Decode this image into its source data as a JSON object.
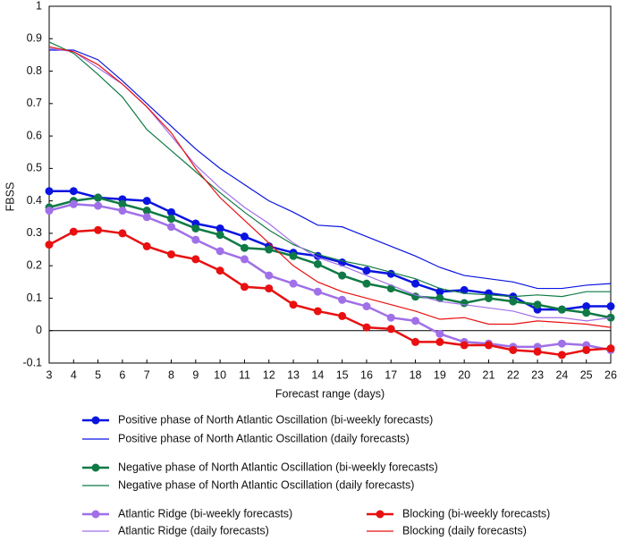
{
  "chart_data": {
    "type": "line",
    "xlabel": "Forecast range (days)",
    "ylabel": "FBSS",
    "x": [
      3,
      4,
      5,
      6,
      7,
      8,
      9,
      10,
      11,
      12,
      13,
      14,
      15,
      16,
      17,
      18,
      19,
      20,
      21,
      22,
      23,
      24,
      25,
      26
    ],
    "xlim": [
      3,
      26
    ],
    "xticks": [
      3,
      4,
      5,
      6,
      7,
      8,
      9,
      10,
      11,
      12,
      13,
      14,
      15,
      16,
      17,
      18,
      19,
      20,
      21,
      22,
      23,
      24,
      25,
      26
    ],
    "ylim": [
      -0.1,
      1
    ],
    "yticks": [
      -0.1,
      0,
      0.1,
      0.2,
      0.3,
      0.4,
      0.5,
      0.6,
      0.7,
      0.8,
      0.9,
      1
    ],
    "zero_line": true,
    "series": [
      {
        "name": "Positive phase of North Atlantic Oscillation (bi-weekly forecasts)",
        "color": "#0a14e0",
        "marker": true,
        "values": [
          0.43,
          0.43,
          0.41,
          0.405,
          0.4,
          0.365,
          0.33,
          0.315,
          0.29,
          0.26,
          0.24,
          0.23,
          0.21,
          0.185,
          0.175,
          0.145,
          0.12,
          0.125,
          0.115,
          0.105,
          0.065,
          0.065,
          0.075,
          0.075
        ]
      },
      {
        "name": "Positive phase of North Atlantic Oscillation (daily forecasts)",
        "color": "#0a14e0",
        "marker": false,
        "values": [
          0.865,
          0.865,
          0.835,
          0.77,
          0.7,
          0.63,
          0.56,
          0.5,
          0.45,
          0.4,
          0.365,
          0.325,
          0.32,
          0.29,
          0.26,
          0.23,
          0.195,
          0.17,
          0.16,
          0.15,
          0.13,
          0.13,
          0.14,
          0.145
        ]
      },
      {
        "name": "Negative phase of North Atlantic Oscillation (bi-weekly forecasts)",
        "color": "#0f7a45",
        "marker": true,
        "values": [
          0.38,
          0.4,
          0.41,
          0.39,
          0.37,
          0.345,
          0.315,
          0.295,
          0.255,
          0.25,
          0.23,
          0.205,
          0.17,
          0.145,
          0.13,
          0.105,
          0.1,
          0.085,
          0.1,
          0.09,
          0.08,
          0.065,
          0.055,
          0.04
        ]
      },
      {
        "name": "Negative phase of North Atlantic Oscillation (daily forecasts)",
        "color": "#0f7a45",
        "marker": false,
        "values": [
          0.89,
          0.855,
          0.79,
          0.72,
          0.62,
          0.555,
          0.49,
          0.425,
          0.365,
          0.31,
          0.265,
          0.235,
          0.215,
          0.2,
          0.18,
          0.16,
          0.13,
          0.115,
          0.11,
          0.105,
          0.11,
          0.105,
          0.12,
          0.12
        ]
      },
      {
        "name": "Atlantic Ridge (bi-weekly forecasts)",
        "color": "#a070e8",
        "marker": true,
        "values": [
          0.37,
          0.39,
          0.385,
          0.37,
          0.35,
          0.32,
          0.28,
          0.245,
          0.22,
          0.17,
          0.145,
          0.12,
          0.095,
          0.075,
          0.04,
          0.03,
          -0.01,
          -0.035,
          -0.04,
          -0.05,
          -0.05,
          -0.04,
          -0.045,
          -0.06
        ]
      },
      {
        "name": "Atlantic Ridge (daily forecasts)",
        "color": "#a070e8",
        "marker": false,
        "values": [
          0.87,
          0.86,
          0.81,
          0.76,
          0.69,
          0.6,
          0.51,
          0.44,
          0.38,
          0.33,
          0.27,
          0.225,
          0.2,
          0.17,
          0.14,
          0.11,
          0.09,
          0.08,
          0.07,
          0.06,
          0.04,
          0.04,
          0.03,
          0.04
        ]
      },
      {
        "name": "Blocking (bi-weekly forecasts)",
        "color": "#e81010",
        "marker": true,
        "values": [
          0.265,
          0.305,
          0.31,
          0.3,
          0.26,
          0.235,
          0.22,
          0.185,
          0.135,
          0.13,
          0.08,
          0.06,
          0.045,
          0.01,
          0.005,
          -0.035,
          -0.035,
          -0.045,
          -0.045,
          -0.06,
          -0.065,
          -0.075,
          -0.06,
          -0.055
        ]
      },
      {
        "name": "Blocking (daily forecasts)",
        "color": "#e81010",
        "marker": false,
        "values": [
          0.875,
          0.86,
          0.82,
          0.76,
          0.69,
          0.61,
          0.5,
          0.41,
          0.34,
          0.27,
          0.2,
          0.15,
          0.12,
          0.1,
          0.08,
          0.06,
          0.035,
          0.04,
          0.02,
          0.02,
          0.03,
          0.025,
          0.02,
          0.01
        ]
      }
    ]
  }
}
